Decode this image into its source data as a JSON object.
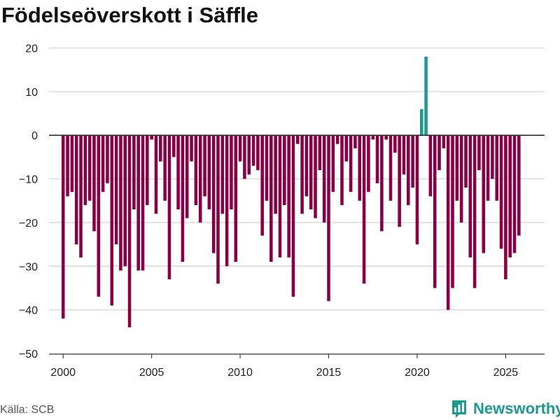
{
  "chart_data": {
    "type": "bar",
    "title": "Födelseöverskott i Säffle",
    "xlabel": "",
    "ylabel": "",
    "ylim": [
      -50,
      22
    ],
    "xlim": [
      1999.2,
      2027.2
    ],
    "yticks": [
      20,
      10,
      0,
      -10,
      -20,
      -30,
      -40,
      -50
    ],
    "xticks": [
      2000,
      2005,
      2010,
      2015,
      2020,
      2025
    ],
    "colors": {
      "positive": "#1a9b8c",
      "negative": "#8b0042",
      "grid": "#d9d9d9",
      "zero": "#222222"
    },
    "start_year": 2000,
    "step": 0.25,
    "values": [
      -42,
      -14,
      -13,
      -25,
      -28,
      -16,
      -15,
      -22,
      -37,
      -13,
      -11,
      -39,
      -25,
      -31,
      -30,
      -44,
      -17,
      -31,
      -31,
      -16,
      -1,
      -18,
      -6,
      -15,
      -33,
      -5,
      -17,
      -29,
      -19,
      -6,
      -16,
      -20,
      -14,
      -17,
      -27,
      -34,
      -18,
      -30,
      -17,
      -29,
      -6,
      -10,
      -9,
      -7,
      -8,
      -23,
      -15,
      -29,
      -18,
      -28,
      -16,
      -28,
      -37,
      -2,
      -18,
      -14,
      -17,
      -19,
      -8,
      -20,
      -38,
      -13,
      -2,
      -16,
      -6,
      -13,
      -3,
      -15,
      -34,
      -13,
      -1,
      -11,
      -22,
      -1,
      -15,
      -4,
      -21,
      -9,
      -16,
      -12,
      -25,
      6,
      18,
      -14,
      -35,
      -8,
      -3,
      -40,
      -35,
      -15,
      -20,
      -12,
      -28,
      -35,
      -8,
      -27,
      -15,
      -10,
      -15,
      -26,
      -33,
      -28,
      -27,
      -23
    ]
  },
  "source": "Källa: SCB",
  "brand": {
    "name": "Newsworthy",
    "icon": "bar-chart-logo-icon"
  }
}
